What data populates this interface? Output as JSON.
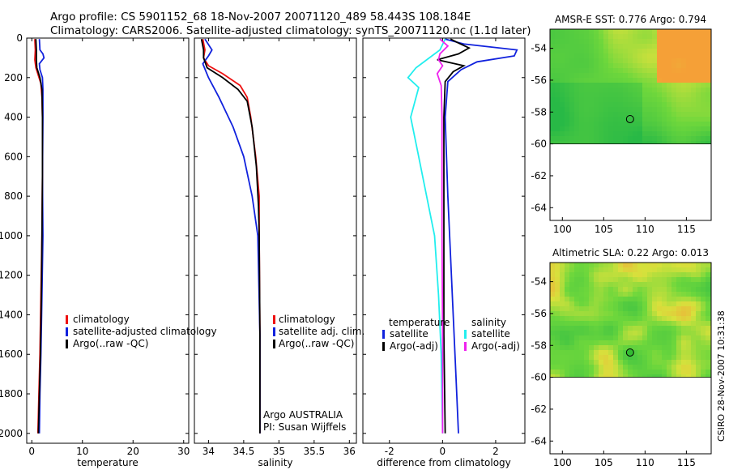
{
  "header": {
    "line1": "Argo profile: CS 5901152_68 18-Nov-2007 20071120_489 58.443S 108.184E",
    "line2": "Climatology: CARS2006. Satellite-adjusted climatology: synTS_20071120.nc (1.1d later)"
  },
  "stamp": "CSIRO 28-Nov-2007 10:31:38",
  "colors": {
    "climatology": "#ee1111",
    "satellite": "#1122dd",
    "argo": "#000000",
    "sat_sal": "#22eeee",
    "argo_sal": "#ee22ee"
  },
  "chart_data": [
    {
      "type": "line",
      "xlabel": "temperature",
      "ylabel": "",
      "xlim": [
        -1,
        31
      ],
      "ylim": [
        2050,
        0
      ],
      "xticks": [
        "0",
        "10",
        "20",
        "30"
      ],
      "yticks": [
        "0",
        "200",
        "400",
        "600",
        "800",
        "1000",
        "1200",
        "1400",
        "1600",
        "1800",
        "2000"
      ],
      "ytick_values": [
        0,
        200,
        400,
        600,
        800,
        1000,
        1200,
        1400,
        1600,
        1800,
        2000
      ],
      "xtick_values": [
        0,
        10,
        20,
        30
      ],
      "legend": [
        "climatology",
        "satellite-adjusted climatology",
        "Argo(..raw -QC)"
      ],
      "series": [
        {
          "name": "climatology",
          "color": "#ee1111",
          "points": [
            [
              0.6,
              5
            ],
            [
              0.7,
              60
            ],
            [
              0.6,
              110
            ],
            [
              0.8,
              150
            ],
            [
              1.3,
              190
            ],
            [
              1.8,
              230
            ],
            [
              2.0,
              300
            ],
            [
              2.1,
              400
            ],
            [
              2.1,
              700
            ],
            [
              2.0,
              1000
            ],
            [
              1.8,
              1300
            ],
            [
              1.6,
              1600
            ],
            [
              1.4,
              1800
            ],
            [
              1.2,
              2000
            ]
          ]
        },
        {
          "name": "satellite-adjusted climatology",
          "color": "#1122dd",
          "points": [
            [
              1.5,
              5
            ],
            [
              1.6,
              60
            ],
            [
              2.2,
              80
            ],
            [
              2.4,
              100
            ],
            [
              1.5,
              130
            ],
            [
              1.6,
              160
            ],
            [
              2.1,
              200
            ],
            [
              2.2,
              260
            ],
            [
              2.2,
              400
            ],
            [
              2.1,
              700
            ],
            [
              2.2,
              1000
            ],
            [
              2.0,
              1300
            ],
            [
              1.8,
              1600
            ],
            [
              1.6,
              1800
            ],
            [
              1.5,
              2000
            ]
          ]
        },
        {
          "name": "Argo(..raw -QC)",
          "color": "#000000",
          "points": [
            [
              0.8,
              5
            ],
            [
              0.9,
              60
            ],
            [
              0.9,
              110
            ],
            [
              1.0,
              150
            ],
            [
              1.6,
              200
            ],
            [
              2.0,
              260
            ],
            [
              2.1,
              400
            ],
            [
              2.1,
              700
            ],
            [
              2.0,
              1000
            ],
            [
              1.9,
              1300
            ],
            [
              1.7,
              1600
            ],
            [
              1.5,
              1800
            ],
            [
              1.3,
              2000
            ]
          ]
        }
      ]
    },
    {
      "type": "line",
      "xlabel": "salinity",
      "xlim": [
        33.8,
        36.1
      ],
      "ylim": [
        2050,
        0
      ],
      "xticks": [
        "34",
        "34.5",
        "35",
        "35.5",
        "36"
      ],
      "xtick_values": [
        34,
        34.5,
        35,
        35.5,
        36
      ],
      "ytick_values": [
        0,
        200,
        400,
        600,
        800,
        1000,
        1200,
        1400,
        1600,
        1800,
        2000
      ],
      "legend": [
        "climatology",
        "satellite adj. clim.",
        "Argo(..raw -QC)"
      ],
      "annotation": [
        "Argo AUSTRALIA",
        "PI: Susan Wijffels"
      ],
      "series": [
        {
          "name": "climatology",
          "color": "#ee1111",
          "points": [
            [
              33.92,
              5
            ],
            [
              33.95,
              60
            ],
            [
              33.93,
              100
            ],
            [
              34.0,
              140
            ],
            [
              34.2,
              180
            ],
            [
              34.45,
              240
            ],
            [
              34.55,
              300
            ],
            [
              34.6,
              400
            ],
            [
              34.67,
              600
            ],
            [
              34.72,
              800
            ],
            [
              34.72,
              1000
            ],
            [
              34.73,
              1500
            ],
            [
              34.73,
              2000
            ]
          ]
        },
        {
          "name": "satellite adj. clim.",
          "color": "#1122dd",
          "points": [
            [
              33.95,
              5
            ],
            [
              34.05,
              60
            ],
            [
              34.0,
              90
            ],
            [
              33.92,
              130
            ],
            [
              34.0,
              200
            ],
            [
              34.15,
              300
            ],
            [
              34.35,
              450
            ],
            [
              34.5,
              600
            ],
            [
              34.62,
              800
            ],
            [
              34.7,
              1000
            ],
            [
              34.73,
              1500
            ],
            [
              34.73,
              2000
            ]
          ]
        },
        {
          "name": "Argo(..raw -QC)",
          "color": "#000000",
          "points": [
            [
              33.9,
              5
            ],
            [
              33.93,
              60
            ],
            [
              33.93,
              100
            ],
            [
              33.98,
              150
            ],
            [
              34.2,
              200
            ],
            [
              34.42,
              260
            ],
            [
              34.55,
              320
            ],
            [
              34.62,
              450
            ],
            [
              34.68,
              650
            ],
            [
              34.71,
              850
            ],
            [
              34.72,
              1000
            ],
            [
              34.73,
              1500
            ],
            [
              34.73,
              2000
            ]
          ]
        }
      ]
    },
    {
      "type": "line",
      "xlabel": "difference from climatology",
      "xlim": [
        -3,
        3.1
      ],
      "ylim": [
        2050,
        0
      ],
      "xticks": [
        "-2",
        "0",
        "2"
      ],
      "xtick_values": [
        -2,
        0,
        2
      ],
      "ytick_values": [
        0,
        200,
        400,
        600,
        800,
        1000,
        1200,
        1400,
        1600,
        1800,
        2000
      ],
      "legend_groups": [
        {
          "title": "temperature",
          "entries": [
            "satellite",
            "Argo(-adj)"
          ]
        },
        {
          "title": "salinity",
          "entries": [
            "satellite",
            "Argo(-adj)"
          ]
        }
      ],
      "series": [
        {
          "name": "temperature satellite",
          "color": "#1122dd",
          "points": [
            [
              0.1,
              5
            ],
            [
              0.8,
              30
            ],
            [
              2.8,
              60
            ],
            [
              2.7,
              90
            ],
            [
              1.3,
              120
            ],
            [
              0.7,
              160
            ],
            [
              0.2,
              220
            ],
            [
              0.1,
              400
            ],
            [
              0.2,
              800
            ],
            [
              0.3,
              1100
            ],
            [
              0.4,
              1400
            ],
            [
              0.5,
              1700
            ],
            [
              0.6,
              2000
            ]
          ]
        },
        {
          "name": "temperature Argo(-adj)",
          "color": "#000000",
          "points": [
            [
              0.3,
              5
            ],
            [
              0.6,
              25
            ],
            [
              1.0,
              50
            ],
            [
              0.6,
              80
            ],
            [
              -0.2,
              110
            ],
            [
              0.8,
              140
            ],
            [
              0.4,
              170
            ],
            [
              0.1,
              220
            ],
            [
              0.05,
              400
            ],
            [
              0.05,
              1000
            ],
            [
              0.05,
              1500
            ],
            [
              0.1,
              2000
            ]
          ]
        },
        {
          "name": "salinity satellite",
          "color": "#22eeee",
          "points": [
            [
              0.1,
              5
            ],
            [
              -0.1,
              60
            ],
            [
              -1.0,
              150
            ],
            [
              -1.3,
              200
            ],
            [
              -0.9,
              250
            ],
            [
              -1.2,
              400
            ],
            [
              -0.9,
              600
            ],
            [
              -0.6,
              800
            ],
            [
              -0.3,
              1000
            ],
            [
              -0.15,
              1300
            ],
            [
              -0.05,
              1600
            ],
            [
              0.0,
              2000
            ]
          ]
        },
        {
          "name": "salinity Argo(-adj)",
          "color": "#ee22ee",
          "points": [
            [
              -0.1,
              5
            ],
            [
              0.2,
              40
            ],
            [
              -0.1,
              80
            ],
            [
              -0.15,
              110
            ],
            [
              0.0,
              140
            ],
            [
              -0.2,
              180
            ],
            [
              -0.05,
              240
            ],
            [
              -0.02,
              400
            ],
            [
              -0.02,
              1000
            ],
            [
              0.0,
              1500
            ],
            [
              0.0,
              2000
            ]
          ]
        }
      ]
    },
    {
      "type": "heatmap",
      "title": "AMSR-E SST: 0.776 Argo: 0.794",
      "xlim": [
        98.5,
        118
      ],
      "ylim": [
        -64.8,
        -52.8
      ],
      "xticks": [
        "100",
        "105",
        "110",
        "115"
      ],
      "xtick_values": [
        100,
        105,
        110,
        115
      ],
      "yticks": [
        "-54",
        "-56",
        "-58",
        "-60",
        "-62",
        "-64"
      ],
      "ytick_values": [
        -54,
        -56,
        -58,
        -60,
        -62,
        -64
      ],
      "data_lat_range": [
        -60,
        -52.8
      ],
      "marker": {
        "lon": 108.184,
        "lat": -58.443,
        "filled": false
      }
    },
    {
      "type": "heatmap",
      "title": "Altimetric SLA: 0.22 Argo: 0.013",
      "xlim": [
        98.5,
        118
      ],
      "ylim": [
        -64.8,
        -52.8
      ],
      "xticks": [
        "100",
        "105",
        "110",
        "115"
      ],
      "xtick_values": [
        100,
        105,
        110,
        115
      ],
      "yticks": [
        "-54",
        "-56",
        "-58",
        "-60",
        "-62",
        "-64"
      ],
      "ytick_values": [
        -54,
        -56,
        -58,
        -60,
        -62,
        -64
      ],
      "data_lat_range": [
        -60,
        -52.8
      ],
      "marker": {
        "lon": 108.184,
        "lat": -58.443,
        "filled": true
      }
    }
  ]
}
